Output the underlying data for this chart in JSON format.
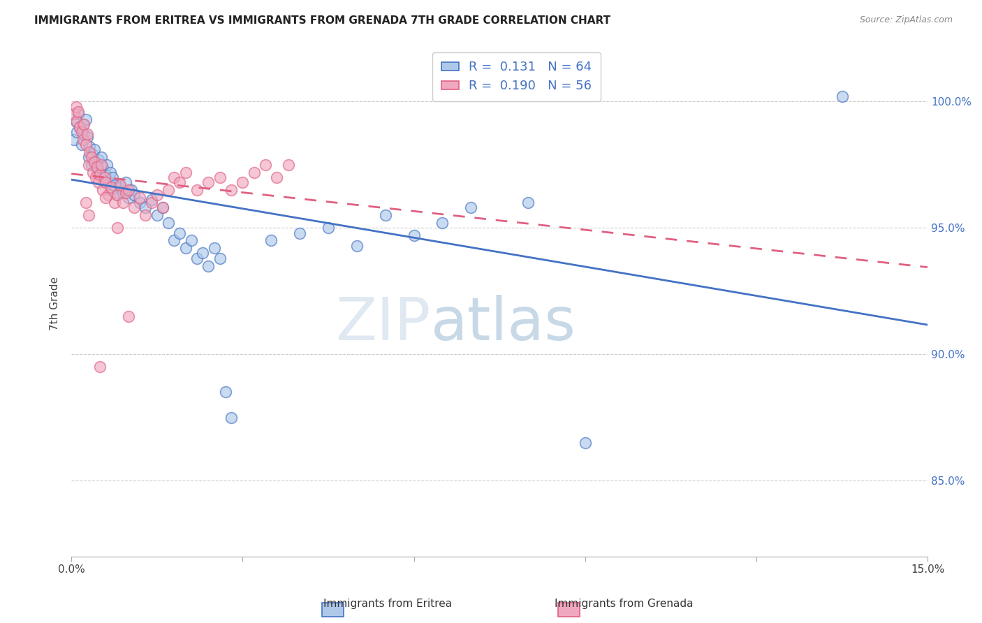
{
  "title": "IMMIGRANTS FROM ERITREA VS IMMIGRANTS FROM GRENADA 7TH GRADE CORRELATION CHART",
  "source": "Source: ZipAtlas.com",
  "ylabel": "7th Grade",
  "x_min": 0.0,
  "x_max": 15.0,
  "y_min": 82.0,
  "y_max": 102.0,
  "y_ticks": [
    85.0,
    90.0,
    95.0,
    100.0
  ],
  "x_ticks": [
    0.0,
    3.0,
    6.0,
    9.0,
    12.0,
    15.0
  ],
  "x_tick_labels": [
    "0.0%",
    "",
    "",
    "",
    "",
    "15.0%"
  ],
  "y_tick_labels": [
    "85.0%",
    "90.0%",
    "95.0%",
    "100.0%"
  ],
  "legend_eritrea": "Immigrants from Eritrea",
  "legend_grenada": "Immigrants from Grenada",
  "color_eritrea": "#adc8e8",
  "color_grenada": "#f0a8c0",
  "color_line_eritrea": "#4472c4",
  "color_line_grenada": "#e06080",
  "R_eritrea": 0.131,
  "N_eritrea": 64,
  "R_grenada": 0.19,
  "N_grenada": 56,
  "watermark_zip": "ZIP",
  "watermark_atlas": "atlas",
  "eritrea_x": [
    0.05,
    0.08,
    0.1,
    0.12,
    0.15,
    0.18,
    0.2,
    0.22,
    0.25,
    0.28,
    0.3,
    0.32,
    0.35,
    0.38,
    0.4,
    0.42,
    0.45,
    0.48,
    0.5,
    0.52,
    0.55,
    0.58,
    0.6,
    0.62,
    0.65,
    0.68,
    0.7,
    0.72,
    0.75,
    0.8,
    0.85,
    0.9,
    0.95,
    1.0,
    1.05,
    1.1,
    1.2,
    1.3,
    1.4,
    1.5,
    1.6,
    1.7,
    1.8,
    1.9,
    2.0,
    2.1,
    2.2,
    2.3,
    2.4,
    2.5,
    2.6,
    2.7,
    2.8,
    3.5,
    4.0,
    4.5,
    5.0,
    5.5,
    6.0,
    6.5,
    7.0,
    8.0,
    9.0,
    13.5
  ],
  "eritrea_y": [
    98.5,
    99.2,
    98.8,
    99.5,
    99.0,
    98.3,
    99.1,
    98.7,
    99.3,
    98.6,
    97.8,
    98.2,
    97.5,
    97.9,
    98.1,
    97.6,
    97.3,
    97.7,
    97.2,
    97.8,
    97.4,
    96.9,
    97.1,
    97.5,
    96.8,
    97.2,
    96.5,
    97.0,
    96.7,
    96.3,
    96.6,
    96.4,
    96.8,
    96.2,
    96.5,
    96.3,
    96.0,
    95.8,
    96.1,
    95.5,
    95.8,
    95.2,
    94.5,
    94.8,
    94.2,
    94.5,
    93.8,
    94.0,
    93.5,
    94.2,
    93.8,
    88.5,
    87.5,
    94.5,
    94.8,
    95.0,
    94.3,
    95.5,
    94.7,
    95.2,
    95.8,
    96.0,
    86.5,
    100.2
  ],
  "grenada_x": [
    0.05,
    0.08,
    0.1,
    0.12,
    0.15,
    0.18,
    0.2,
    0.22,
    0.25,
    0.28,
    0.3,
    0.32,
    0.35,
    0.38,
    0.4,
    0.42,
    0.45,
    0.48,
    0.5,
    0.52,
    0.55,
    0.58,
    0.6,
    0.65,
    0.7,
    0.75,
    0.8,
    0.85,
    0.9,
    0.95,
    1.0,
    1.1,
    1.2,
    1.3,
    1.4,
    1.5,
    1.6,
    1.7,
    1.8,
    1.9,
    2.0,
    2.2,
    2.4,
    2.6,
    2.8,
    3.0,
    3.2,
    3.4,
    3.6,
    3.8,
    0.25,
    0.3,
    0.6,
    0.8,
    1.0,
    0.5
  ],
  "grenada_y": [
    99.5,
    99.8,
    99.2,
    99.6,
    99.0,
    98.8,
    98.5,
    99.1,
    98.3,
    98.7,
    97.5,
    98.0,
    97.8,
    97.2,
    97.6,
    97.0,
    97.4,
    96.8,
    97.1,
    97.5,
    96.5,
    97.0,
    96.8,
    96.3,
    96.6,
    96.0,
    96.3,
    96.7,
    96.0,
    96.4,
    96.5,
    95.8,
    96.2,
    95.5,
    96.0,
    96.3,
    95.8,
    96.5,
    97.0,
    96.8,
    97.2,
    96.5,
    96.8,
    97.0,
    96.5,
    96.8,
    97.2,
    97.5,
    97.0,
    97.5,
    96.0,
    95.5,
    96.2,
    95.0,
    91.5,
    89.5
  ]
}
